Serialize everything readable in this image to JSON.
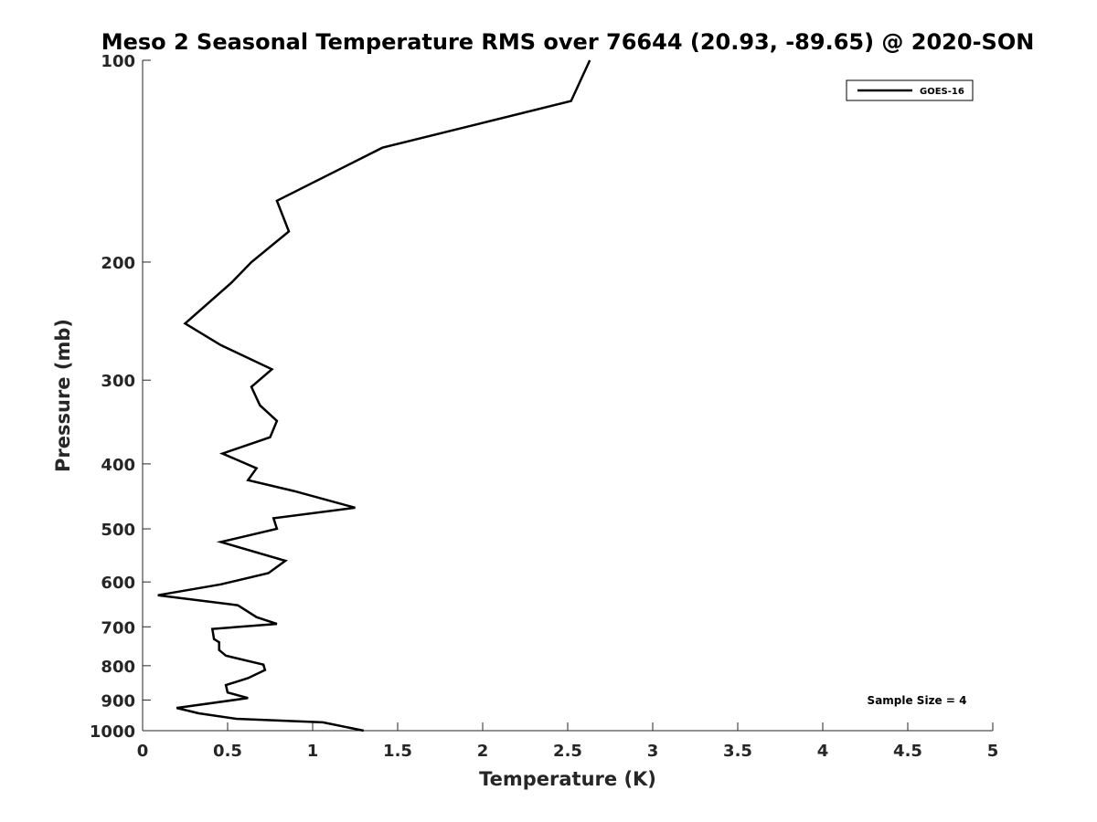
{
  "chart_data": {
    "type": "line",
    "title": "Meso 2 Seasonal Temperature RMS over 76644 (20.93, -89.65) @ 2020-SON",
    "xlabel": "Temperature (K)",
    "ylabel": "Pressure (mb)",
    "xlim": [
      0,
      5
    ],
    "ylim": [
      100,
      1000
    ],
    "y_scale": "log",
    "y_reversed": true,
    "grid": false,
    "legend_position": "top-right",
    "x_ticks": [
      "0",
      "0.5",
      "1",
      "1.5",
      "2",
      "2.5",
      "3",
      "3.5",
      "4",
      "4.5",
      "5"
    ],
    "y_ticks": [
      "100",
      "200",
      "300",
      "400",
      "500",
      "600",
      "700",
      "800",
      "900",
      "1000"
    ],
    "annotation": "Sample Size = 4",
    "line_color": "#000000",
    "series": [
      {
        "name": "GOES-16",
        "points": [
          [
            2.63,
            100
          ],
          [
            2.52,
            115
          ],
          [
            1.41,
            135
          ],
          [
            0.79,
            162
          ],
          [
            0.86,
            180
          ],
          [
            0.64,
            200
          ],
          [
            0.52,
            215
          ],
          [
            0.25,
            247
          ],
          [
            0.46,
            266
          ],
          [
            0.76,
            289
          ],
          [
            0.64,
            307
          ],
          [
            0.69,
            327
          ],
          [
            0.79,
            345
          ],
          [
            0.75,
            365
          ],
          [
            0.47,
            386
          ],
          [
            0.67,
            406
          ],
          [
            0.62,
            423
          ],
          [
            0.89,
            439
          ],
          [
            1.25,
            465
          ],
          [
            0.77,
            482
          ],
          [
            0.79,
            500
          ],
          [
            0.46,
            523
          ],
          [
            0.84,
            558
          ],
          [
            0.74,
            582
          ],
          [
            0.46,
            605
          ],
          [
            0.09,
            628
          ],
          [
            0.56,
            650
          ],
          [
            0.67,
            677
          ],
          [
            0.79,
            693
          ],
          [
            0.41,
            705
          ],
          [
            0.42,
            730
          ],
          [
            0.45,
            738
          ],
          [
            0.45,
            758
          ],
          [
            0.49,
            773
          ],
          [
            0.71,
            797
          ],
          [
            0.72,
            812
          ],
          [
            0.62,
            835
          ],
          [
            0.49,
            855
          ],
          [
            0.5,
            877
          ],
          [
            0.62,
            894
          ],
          [
            0.2,
            925
          ],
          [
            0.33,
            942
          ],
          [
            0.55,
            960
          ],
          [
            1.06,
            972
          ],
          [
            1.3,
            1000
          ]
        ]
      }
    ]
  }
}
